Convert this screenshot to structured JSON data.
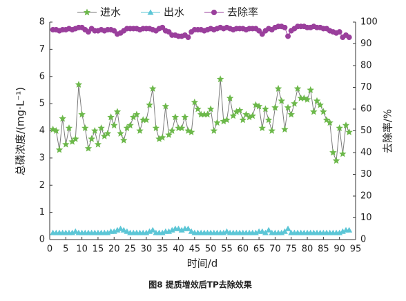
{
  "chart_data": {
    "type": "line",
    "caption": "图8 提质增效后TP去除效果",
    "x_label": "时间/d",
    "y_label": "总磷浓度/(mg·L⁻¹)",
    "y2_label": "去除率/%",
    "x": [
      1,
      2,
      3,
      4,
      5,
      6,
      7,
      8,
      9,
      10,
      11,
      12,
      13,
      14,
      15,
      16,
      17,
      18,
      19,
      20,
      21,
      22,
      23,
      24,
      25,
      26,
      27,
      28,
      29,
      30,
      31,
      32,
      33,
      34,
      35,
      36,
      37,
      38,
      39,
      40,
      41,
      42,
      43,
      44,
      45,
      46,
      47,
      48,
      49,
      50,
      51,
      52,
      53,
      54,
      55,
      56,
      57,
      58,
      59,
      60,
      61,
      62,
      63,
      64,
      65,
      66,
      67,
      68,
      69,
      70,
      71,
      72,
      73,
      74,
      75,
      76,
      77,
      78,
      79,
      80,
      81,
      82,
      83,
      84,
      85,
      86,
      87,
      88,
      89,
      90,
      91,
      92,
      93
    ],
    "series": [
      {
        "name": "进水",
        "color": "#6cb84a",
        "marker": "star",
        "line_color": "#7a7a7a",
        "values": [
          4.05,
          4.0,
          3.3,
          4.45,
          3.5,
          4.1,
          3.6,
          3.7,
          5.7,
          4.6,
          4.1,
          3.35,
          3.7,
          4.0,
          3.5,
          4.1,
          3.8,
          3.9,
          4.5,
          4.2,
          4.7,
          3.9,
          3.65,
          4.1,
          4.2,
          4.5,
          4.6,
          4.0,
          4.4,
          4.4,
          4.95,
          5.55,
          4.1,
          3.7,
          3.75,
          4.9,
          3.85,
          4.0,
          4.5,
          4.1,
          4.1,
          4.5,
          4.0,
          3.95,
          5.05,
          4.8,
          4.6,
          4.6,
          4.6,
          4.8,
          4.0,
          4.3,
          5.9,
          4.35,
          4.4,
          5.2,
          4.55,
          4.7,
          4.75,
          4.4,
          4.6,
          4.5,
          4.55,
          4.95,
          4.9,
          4.1,
          4.8,
          4.4,
          4.0,
          4.85,
          5.55,
          5.1,
          4.05,
          4.85,
          4.6,
          5.0,
          5.55,
          5.2,
          5.2,
          5.15,
          5.5,
          4.7,
          5.1,
          4.95,
          4.7,
          4.4,
          4.3,
          3.2,
          2.9,
          4.1,
          3.15,
          4.2,
          3.95
        ]
      },
      {
        "name": "出水",
        "color": "#5cc6d6",
        "marker": "triangle",
        "line_color": "#5cc6d6",
        "values": [
          0.25,
          0.25,
          0.25,
          0.25,
          0.25,
          0.25,
          0.25,
          0.3,
          0.25,
          0.25,
          0.25,
          0.25,
          0.25,
          0.25,
          0.25,
          0.25,
          0.25,
          0.25,
          0.3,
          0.3,
          0.35,
          0.4,
          0.35,
          0.3,
          0.25,
          0.25,
          0.25,
          0.25,
          0.25,
          0.25,
          0.3,
          0.35,
          0.25,
          0.25,
          0.25,
          0.3,
          0.3,
          0.35,
          0.4,
          0.4,
          0.35,
          0.4,
          0.4,
          0.3,
          0.25,
          0.25,
          0.25,
          0.25,
          0.25,
          0.25,
          0.25,
          0.25,
          0.25,
          0.25,
          0.3,
          0.25,
          0.25,
          0.25,
          0.25,
          0.25,
          0.25,
          0.25,
          0.25,
          0.25,
          0.3,
          0.3,
          0.25,
          0.35,
          0.25,
          0.25,
          0.25,
          0.25,
          0.3,
          0.4,
          0.25,
          0.25,
          0.25,
          0.25,
          0.25,
          0.25,
          0.25,
          0.25,
          0.25,
          0.25,
          0.25,
          0.25,
          0.25,
          0.25,
          0.25,
          0.25,
          0.3,
          0.35,
          0.35
        ]
      },
      {
        "name": "去除率",
        "color": "#9a3f9c",
        "marker": "circle",
        "line_color": "#9a3f9c",
        "axis": "y2",
        "values": [
          96.5,
          96.5,
          96,
          96.5,
          96.5,
          97,
          96.5,
          97,
          97.5,
          97.5,
          96.5,
          95.5,
          97,
          96,
          96,
          96.5,
          96,
          96.5,
          96.5,
          96,
          94.5,
          95,
          96,
          97,
          97,
          97,
          97,
          96.5,
          97,
          97,
          97,
          96.5,
          96,
          97,
          97.5,
          96,
          95.5,
          94,
          94,
          93.5,
          93.5,
          94,
          93,
          95.5,
          96.5,
          96.5,
          96.5,
          96,
          96.5,
          97,
          96.5,
          97,
          97.5,
          97,
          97.5,
          97,
          96.5,
          97,
          97,
          97,
          96.5,
          97,
          97,
          97,
          96,
          94.5,
          96,
          97,
          96.5,
          97.5,
          98,
          98,
          97.5,
          93.5,
          96,
          97,
          98,
          98,
          98,
          97.5,
          97.5,
          98,
          97.5,
          97.5,
          97,
          97,
          96,
          95.5,
          95,
          95.5,
          93,
          94,
          93
        ]
      }
    ],
    "xlim": [
      0,
      95
    ],
    "xticks": [
      0,
      5,
      10,
      15,
      20,
      25,
      30,
      35,
      40,
      45,
      50,
      55,
      60,
      65,
      70,
      75,
      80,
      85,
      90,
      95
    ],
    "ylim": [
      0,
      8
    ],
    "yticks": [
      0,
      1,
      2,
      3,
      4,
      5,
      6,
      7,
      8
    ],
    "y2lim": [
      0,
      100
    ],
    "y2ticks": [
      0,
      10,
      20,
      30,
      40,
      50,
      60,
      70,
      80,
      90,
      100
    ],
    "legend": "top"
  }
}
